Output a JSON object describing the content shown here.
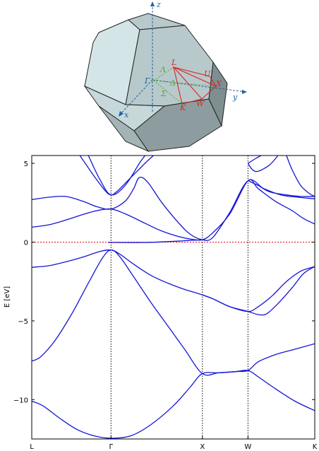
{
  "brillouin_zone": {
    "axes": {
      "x": "x",
      "y": "y",
      "z": "z"
    },
    "points": {
      "Gamma": "Γ",
      "X": "X",
      "L": "L",
      "K": "K",
      "W": "W",
      "U": "U"
    },
    "lines": {
      "Lambda": "Λ",
      "Delta": "Δ",
      "Sigma": "Σ"
    },
    "colors": {
      "path": "#d62728",
      "lines": "#5aaa2a",
      "axes": "#2060a0",
      "face_light": "#d4e5e8",
      "face_mid": "#b7c9cb",
      "face_dark": "#8d9d9f"
    }
  },
  "chart_data": {
    "type": "line",
    "title": "",
    "xlabel": "",
    "ylabel": "E [eV]",
    "ylim": [
      -12.5,
      5.5
    ],
    "xlim": [
      0,
      1
    ],
    "yticks": [
      5,
      0,
      -5,
      -10
    ],
    "ytick_labels": [
      "5",
      "0",
      "−5",
      "−10"
    ],
    "kpoints": [
      {
        "label": "L",
        "x": 0.0
      },
      {
        "label": "Γ",
        "x": 0.28
      },
      {
        "label": "X",
        "x": 0.603
      },
      {
        "label": "W",
        "x": 0.764
      },
      {
        "label": "K",
        "x": 1.0
      }
    ],
    "fermi_level": 0,
    "line_color": "#1515d8",
    "fermi_color": "#e0201e",
    "series": [
      {
        "points": [
          [
            0,
            -10.1
          ],
          [
            0.04,
            -10.4
          ],
          [
            0.1,
            -11.2
          ],
          [
            0.16,
            -11.9
          ],
          [
            0.22,
            -12.3
          ],
          [
            0.28,
            -12.45
          ],
          [
            0.35,
            -12.3
          ],
          [
            0.42,
            -11.6
          ],
          [
            0.5,
            -10.4
          ],
          [
            0.56,
            -9.2
          ],
          [
            0.603,
            -8.35
          ],
          [
            0.66,
            -8.3
          ],
          [
            0.72,
            -8.22
          ],
          [
            0.764,
            -8.15
          ],
          [
            0.8,
            -8.55
          ],
          [
            0.86,
            -9.3
          ],
          [
            0.93,
            -10.1
          ],
          [
            1.0,
            -10.7
          ]
        ]
      },
      {
        "points": [
          [
            0,
            -7.55
          ],
          [
            0.03,
            -7.3
          ],
          [
            0.08,
            -6.3
          ],
          [
            0.14,
            -4.6
          ],
          [
            0.2,
            -2.6
          ],
          [
            0.25,
            -1.0
          ],
          [
            0.28,
            -0.5
          ],
          [
            0.31,
            -0.9
          ],
          [
            0.36,
            -2.2
          ],
          [
            0.42,
            -3.8
          ],
          [
            0.48,
            -5.3
          ],
          [
            0.54,
            -6.8
          ],
          [
            0.603,
            -8.35
          ],
          [
            0.66,
            -8.3
          ],
          [
            0.72,
            -8.22
          ],
          [
            0.764,
            -8.15
          ],
          [
            0.8,
            -7.6
          ],
          [
            0.86,
            -7.15
          ],
          [
            0.93,
            -6.8
          ],
          [
            1.0,
            -6.45
          ]
        ]
      },
      {
        "points": [
          [
            0,
            -1.6
          ],
          [
            0.06,
            -1.5
          ],
          [
            0.12,
            -1.25
          ],
          [
            0.18,
            -0.95
          ],
          [
            0.24,
            -0.6
          ],
          [
            0.28,
            -0.5
          ],
          [
            0.31,
            -0.75
          ],
          [
            0.36,
            -1.4
          ],
          [
            0.42,
            -2.1
          ],
          [
            0.48,
            -2.6
          ],
          [
            0.54,
            -3.0
          ],
          [
            0.603,
            -3.35
          ],
          [
            0.64,
            -3.6
          ],
          [
            0.7,
            -4.1
          ],
          [
            0.764,
            -4.4
          ],
          [
            0.8,
            -4.1
          ],
          [
            0.85,
            -3.4
          ],
          [
            0.9,
            -2.5
          ],
          [
            0.95,
            -1.85
          ],
          [
            1.0,
            -1.55
          ]
        ]
      },
      {
        "points": [
          [
            0.603,
            -3.35
          ],
          [
            0.64,
            -3.6
          ],
          [
            0.7,
            -4.1
          ],
          [
            0.764,
            -4.4
          ],
          [
            0.8,
            -4.6
          ],
          [
            0.83,
            -4.55
          ],
          [
            0.87,
            -3.9
          ],
          [
            0.92,
            -2.9
          ],
          [
            0.96,
            -2.0
          ],
          [
            1.0,
            -1.55
          ]
        ]
      },
      {
        "points": [
          [
            0,
            0.95
          ],
          [
            0.06,
            1.1
          ],
          [
            0.12,
            1.4
          ],
          [
            0.18,
            1.75
          ],
          [
            0.23,
            2.0
          ],
          [
            0.28,
            2.1
          ],
          [
            0.33,
            1.8
          ],
          [
            0.4,
            1.2
          ],
          [
            0.46,
            0.7
          ],
          [
            0.52,
            0.35
          ],
          [
            0.56,
            0.2
          ],
          [
            0.603,
            0.15
          ],
          [
            0.64,
            0.6
          ],
          [
            0.7,
            1.8
          ],
          [
            0.764,
            3.9
          ],
          [
            0.8,
            3.4
          ],
          [
            0.86,
            2.6
          ],
          [
            0.92,
            2.0
          ],
          [
            0.96,
            1.5
          ],
          [
            1.0,
            1.15
          ]
        ]
      },
      {
        "points": [
          [
            0,
            2.7
          ],
          [
            0.06,
            2.85
          ],
          [
            0.12,
            2.9
          ],
          [
            0.18,
            2.6
          ],
          [
            0.23,
            2.25
          ],
          [
            0.28,
            2.1
          ],
          [
            0.33,
            2.6
          ],
          [
            0.36,
            3.4
          ],
          [
            0.38,
            4.1
          ],
          [
            0.41,
            3.8
          ],
          [
            0.46,
            2.5
          ],
          [
            0.52,
            1.2
          ],
          [
            0.56,
            0.5
          ],
          [
            0.603,
            0.15
          ],
          [
            0.64,
            0.3
          ],
          [
            0.7,
            1.9
          ],
          [
            0.764,
            3.9
          ],
          [
            0.82,
            3.4
          ],
          [
            0.88,
            3.0
          ],
          [
            0.94,
            2.85
          ],
          [
            1.0,
            2.75
          ]
        ]
      },
      {
        "points": [
          [
            0.17,
            5.5
          ],
          [
            0.22,
            4.2
          ],
          [
            0.26,
            3.25
          ],
          [
            0.28,
            3.0
          ],
          [
            0.3,
            3.2
          ],
          [
            0.35,
            4.1
          ],
          [
            0.4,
            5.0
          ],
          [
            0.43,
            5.5
          ]
        ]
      },
      {
        "points": [
          [
            0.2,
            5.5
          ],
          [
            0.24,
            4.0
          ],
          [
            0.28,
            3.0
          ],
          [
            0.33,
            3.6
          ],
          [
            0.38,
            5.0
          ],
          [
            0.4,
            5.5
          ]
        ]
      },
      {
        "points": [
          [
            0.27,
            -0.02
          ],
          [
            0.4,
            -0.02
          ],
          [
            0.5,
            0.05
          ],
          [
            0.55,
            0.1
          ],
          [
            0.603,
            0.15
          ]
        ]
      },
      {
        "points": [
          [
            0.764,
            5.0
          ],
          [
            0.78,
            4.6
          ],
          [
            0.8,
            4.5
          ],
          [
            0.84,
            4.9
          ],
          [
            0.87,
            5.5
          ]
        ]
      },
      {
        "points": [
          [
            0.764,
            5.0
          ],
          [
            0.79,
            5.3
          ],
          [
            0.81,
            5.5
          ]
        ]
      },
      {
        "points": [
          [
            0.764,
            3.9
          ],
          [
            0.8,
            3.6
          ],
          [
            0.84,
            3.2
          ],
          [
            0.9,
            3.0
          ],
          [
            0.95,
            2.9
          ],
          [
            1.0,
            2.9
          ]
        ]
      },
      {
        "points": [
          [
            0.9,
            5.5
          ],
          [
            0.92,
            4.6
          ],
          [
            0.95,
            3.6
          ],
          [
            0.98,
            3.1
          ],
          [
            1.0,
            2.9
          ]
        ]
      }
    ]
  }
}
